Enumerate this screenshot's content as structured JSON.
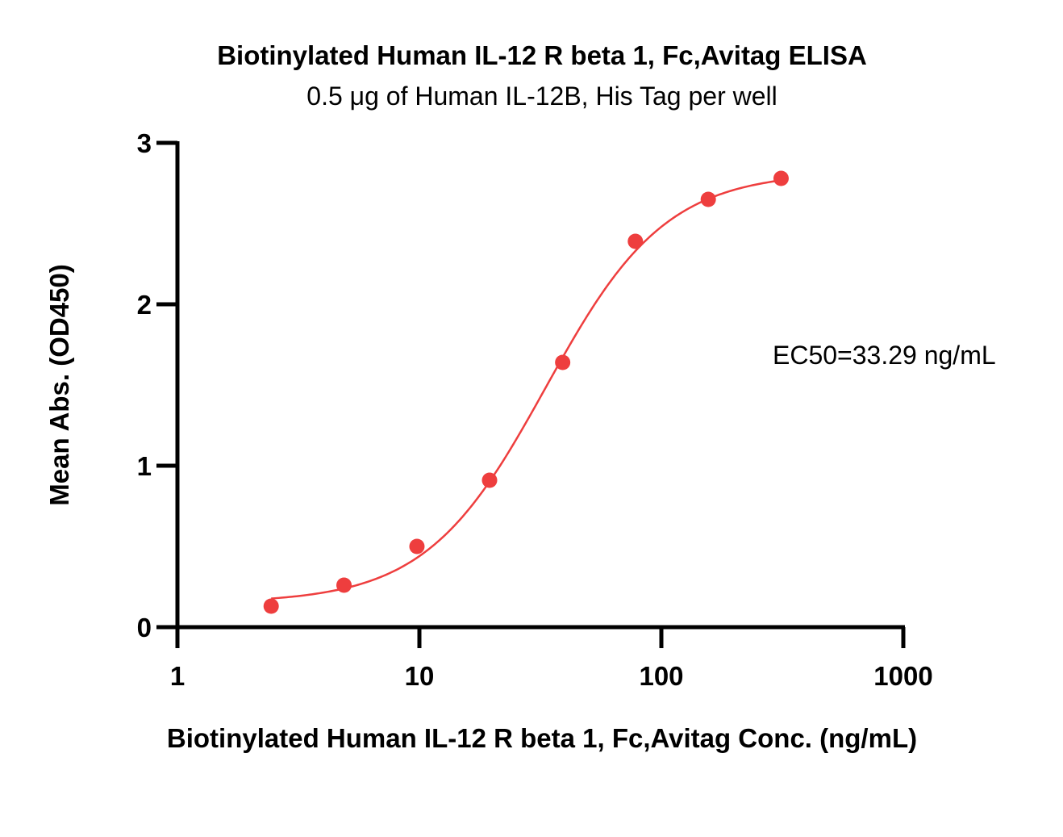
{
  "chart_data": {
    "type": "scatter",
    "title": "Biotinylated Human IL-12 R beta 1, Fc,Avitag ELISA",
    "subtitle": "0.5 μg of Human IL-12B, His Tag per well",
    "xlabel": "Biotinylated Human IL-12 R beta 1, Fc,Avitag Conc. (ng/mL)",
    "ylabel": "Mean Abs. (OD450)",
    "xscale": "log",
    "xlim": [
      1,
      1000
    ],
    "ylim": [
      0,
      3
    ],
    "xticks": [
      "1",
      "10",
      "100",
      "1000"
    ],
    "yticks": [
      "0",
      "1",
      "2",
      "3"
    ],
    "grid": false,
    "series": [
      {
        "color": "#ee3e3e",
        "points": [
          {
            "x": 2.44,
            "y": 0.13
          },
          {
            "x": 4.88,
            "y": 0.26
          },
          {
            "x": 9.77,
            "y": 0.5
          },
          {
            "x": 19.5,
            "y": 0.91
          },
          {
            "x": 39.1,
            "y": 1.64
          },
          {
            "x": 78.1,
            "y": 2.39
          },
          {
            "x": 156.3,
            "y": 2.65
          },
          {
            "x": 312.5,
            "y": 2.78
          }
        ],
        "fit": {
          "bottom": 0.15,
          "top": 2.82,
          "ec50": 33.29,
          "hill": 1.75
        }
      }
    ],
    "annotation": "EC50=33.29 ng/mL"
  }
}
